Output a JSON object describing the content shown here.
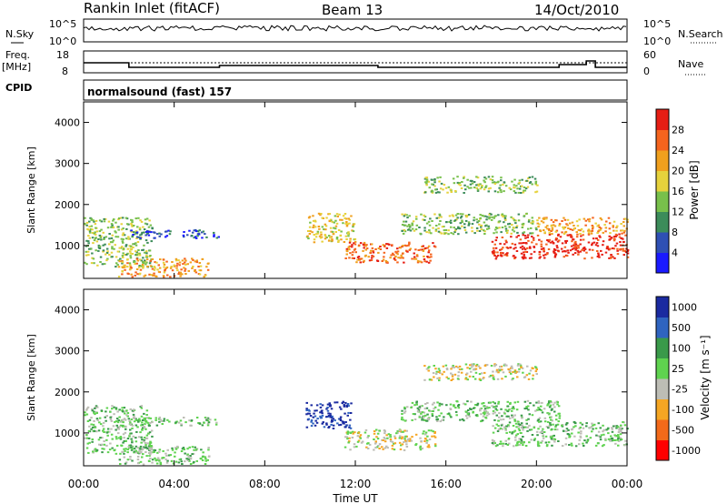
{
  "header": {
    "station": "Rankin Inlet (fitACF)",
    "beam": "Beam 13",
    "date": "14/Oct/2010"
  },
  "noise_panel": {
    "left_label": "N.Sky",
    "right_label": "N.Search",
    "left_ticks": [
      "10^5",
      "10^0"
    ],
    "right_ticks": [
      "10^5",
      "10^0"
    ]
  },
  "freq_panel": {
    "left_label_1": "Freq.",
    "left_label_2": "[MHz]",
    "right_label": "Nave",
    "left_ticks": [
      "18",
      "8"
    ],
    "right_ticks": [
      "60",
      "0"
    ]
  },
  "cpid": {
    "label": "CPID",
    "value": "normalsound (fast) 157"
  },
  "time_axis": {
    "label": "Time UT",
    "ticks": [
      "00:00",
      "04:00",
      "08:00",
      "12:00",
      "16:00",
      "20:00",
      "00:00"
    ]
  },
  "colors": {
    "power_scale": [
      "#1a1aff",
      "#2f50b4",
      "#3c8c5a",
      "#78c04b",
      "#e6d23c",
      "#f0a01e",
      "#f5641e",
      "#e61e14"
    ],
    "velocity_scale": [
      "#ff0000",
      "#f36a1a",
      "#f5a623",
      "#bdbdb5",
      "#5fd34f",
      "#3a9a4a",
      "#2f64c0",
      "#1a2aa0"
    ]
  },
  "chart_data": [
    {
      "type": "heatmap",
      "title": "Power",
      "xlabel": "Time UT",
      "ylabel": "Slant Range [km]",
      "xlim": [
        "00:00",
        "24:00"
      ],
      "ylim": [
        200,
        4500
      ],
      "y_ticks": [
        "1000",
        "2000",
        "3000",
        "4000"
      ],
      "colorbar": {
        "label": "Power [dB]",
        "ticks": [
          "4",
          "8",
          "12",
          "16",
          "20",
          "24",
          "28"
        ],
        "range": [
          0,
          30
        ]
      },
      "blobs": [
        {
          "t0": 0.0,
          "t1": 3.0,
          "r0": 500,
          "r1": 1700,
          "value": 14
        },
        {
          "t0": 1.5,
          "t1": 5.5,
          "r0": 250,
          "r1": 700,
          "value": 22
        },
        {
          "t0": 2.0,
          "t1": 6.0,
          "r0": 1200,
          "r1": 1400,
          "value": 6
        },
        {
          "t0": 9.8,
          "t1": 12.0,
          "r0": 1100,
          "r1": 1800,
          "value": 16
        },
        {
          "t0": 11.5,
          "t1": 15.5,
          "r0": 600,
          "r1": 1100,
          "value": 24
        },
        {
          "t0": 14.0,
          "t1": 20.0,
          "r0": 1300,
          "r1": 1800,
          "value": 14
        },
        {
          "t0": 15.0,
          "t1": 20.0,
          "r0": 2300,
          "r1": 2700,
          "value": 12
        },
        {
          "t0": 18.0,
          "t1": 24.0,
          "r0": 700,
          "r1": 1300,
          "value": 28
        },
        {
          "t0": 20.0,
          "t1": 24.0,
          "r0": 1300,
          "r1": 1700,
          "value": 20
        }
      ]
    },
    {
      "type": "heatmap",
      "title": "Velocity",
      "xlabel": "Time UT",
      "ylabel": "Slant Range [km]",
      "xlim": [
        "00:00",
        "24:00"
      ],
      "ylim": [
        200,
        4500
      ],
      "y_ticks": [
        "1000",
        "2000",
        "3000",
        "4000"
      ],
      "colorbar": {
        "label": "Velocity [m s⁻¹]",
        "ticks": [
          "-1000",
          "-500",
          "-100",
          "-25",
          "25",
          "100",
          "500",
          "1000"
        ],
        "range": [
          -1000,
          1000
        ]
      },
      "blobs": [
        {
          "t0": 0.0,
          "t1": 3.0,
          "r0": 500,
          "r1": 1700,
          "value": 150
        },
        {
          "t0": 1.5,
          "t1": 5.5,
          "r0": 250,
          "r1": 700,
          "value": 60
        },
        {
          "t0": 2.0,
          "t1": 6.0,
          "r0": 1200,
          "r1": 1400,
          "value": 0
        },
        {
          "t0": 9.8,
          "t1": 11.8,
          "r0": 1100,
          "r1": 1800,
          "value": 800
        },
        {
          "t0": 11.5,
          "t1": 15.5,
          "r0": 600,
          "r1": 1100,
          "value": -200
        },
        {
          "t0": 14.0,
          "t1": 21.0,
          "r0": 1300,
          "r1": 1800,
          "value": 0
        },
        {
          "t0": 15.0,
          "t1": 20.0,
          "r0": 2300,
          "r1": 2700,
          "value": -200
        },
        {
          "t0": 18.0,
          "t1": 24.0,
          "r0": 700,
          "r1": 1300,
          "value": 150
        }
      ]
    }
  ]
}
